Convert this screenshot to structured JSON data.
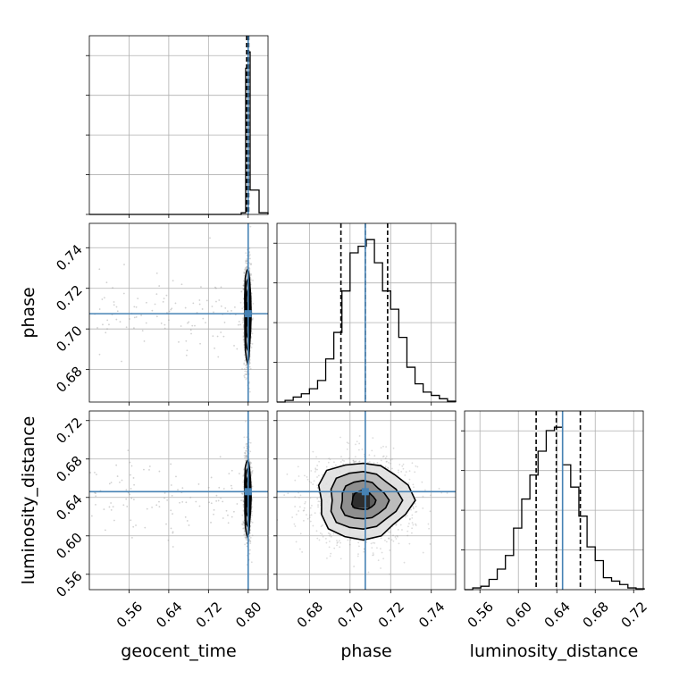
{
  "chart_data": {
    "type": "corner",
    "parameters": [
      {
        "name": "geocent_time",
        "label": "geocent_time",
        "range": [
          0.48,
          0.84
        ],
        "ticks": [
          0.56,
          0.64,
          0.72,
          0.8
        ],
        "tick_labels": [
          "0.56",
          "0.64",
          "0.72",
          "0.80"
        ],
        "truth": 0.8,
        "quantiles": [
          0.797,
          0.799,
          0.801
        ]
      },
      {
        "name": "phase",
        "label": "phase",
        "range": [
          0.664,
          0.752
        ],
        "ticks": [
          0.68,
          0.7,
          0.72,
          0.74
        ],
        "tick_labels": [
          "0.68",
          "0.70",
          "0.72",
          "0.74"
        ],
        "truth": 0.7075,
        "quantiles": [
          0.6955,
          0.7075,
          0.7185
        ]
      },
      {
        "name": "luminosity_distance",
        "label": "luminosity_distance",
        "range": [
          0.544,
          0.73
        ],
        "ticks": [
          0.56,
          0.6,
          0.64,
          0.68,
          0.72
        ],
        "tick_labels": [
          "0.56",
          "0.60",
          "0.64",
          "0.68",
          "0.72"
        ],
        "truth": 0.646,
        "quantiles": [
          0.6185,
          0.6395,
          0.6645
        ]
      }
    ],
    "histograms": [
      {
        "param": "geocent_time",
        "bin_edges": [
          0.48,
          0.498,
          0.516,
          0.534,
          0.552,
          0.57,
          0.588,
          0.606,
          0.624,
          0.642,
          0.66,
          0.678,
          0.696,
          0.714,
          0.732,
          0.75,
          0.768,
          0.786,
          0.795,
          0.8,
          0.804,
          0.822,
          0.84
        ],
        "counts": [
          0,
          0,
          0,
          0,
          0,
          0,
          0,
          0,
          0,
          0,
          0,
          0,
          0,
          0,
          0,
          0,
          0,
          0.01,
          0.9,
          1.0,
          0.15,
          0.01
        ]
      },
      {
        "param": "phase",
        "bin_edges": [
          0.664,
          0.668,
          0.672,
          0.676,
          0.68,
          0.684,
          0.688,
          0.692,
          0.696,
          0.7,
          0.704,
          0.708,
          0.712,
          0.716,
          0.72,
          0.724,
          0.728,
          0.732,
          0.736,
          0.74,
          0.744,
          0.748,
          0.752
        ],
        "counts": [
          0.0,
          0.01,
          0.03,
          0.05,
          0.08,
          0.13,
          0.26,
          0.42,
          0.67,
          0.9,
          0.94,
          0.98,
          0.84,
          0.67,
          0.56,
          0.39,
          0.21,
          0.11,
          0.06,
          0.04,
          0.02,
          0.005
        ]
      },
      {
        "param": "luminosity_distance",
        "bin_edges": [
          0.544,
          0.5525,
          0.561,
          0.5695,
          0.578,
          0.5865,
          0.595,
          0.6035,
          0.612,
          0.6205,
          0.629,
          0.6375,
          0.646,
          0.6545,
          0.663,
          0.6715,
          0.68,
          0.6885,
          0.697,
          0.7055,
          0.714,
          0.7225,
          0.731
        ],
        "counts": [
          0.0,
          0.01,
          0.02,
          0.06,
          0.12,
          0.2,
          0.36,
          0.53,
          0.67,
          0.81,
          0.93,
          0.95,
          0.73,
          0.6,
          0.43,
          0.25,
          0.17,
          0.07,
          0.05,
          0.03,
          0.01,
          0.005
        ]
      }
    ],
    "pairs": [
      {
        "x": "geocent_time",
        "y": "phase",
        "center": [
          0.799,
          0.707
        ],
        "sigma": [
          0.003,
          0.011
        ],
        "outlier_spread": [
          0.48,
          0.79
        ]
      },
      {
        "x": "geocent_time",
        "y": "luminosity_distance",
        "center": [
          0.799,
          0.64
        ],
        "sigma": [
          0.003,
          0.019
        ],
        "outlier_spread": [
          0.48,
          0.79
        ]
      },
      {
        "x": "phase",
        "y": "luminosity_distance",
        "center": [
          0.7065,
          0.637
        ],
        "sigma": [
          0.011,
          0.019
        ],
        "outlier_spread": null
      }
    ],
    "levels_sigma": [
      0.5,
      1.0,
      1.5,
      2.0
    ],
    "colors": {
      "truth": "#4682b4",
      "line": "#000000",
      "grid": "#b0b0b0",
      "points": "#9a9a9a"
    },
    "grid": true
  }
}
